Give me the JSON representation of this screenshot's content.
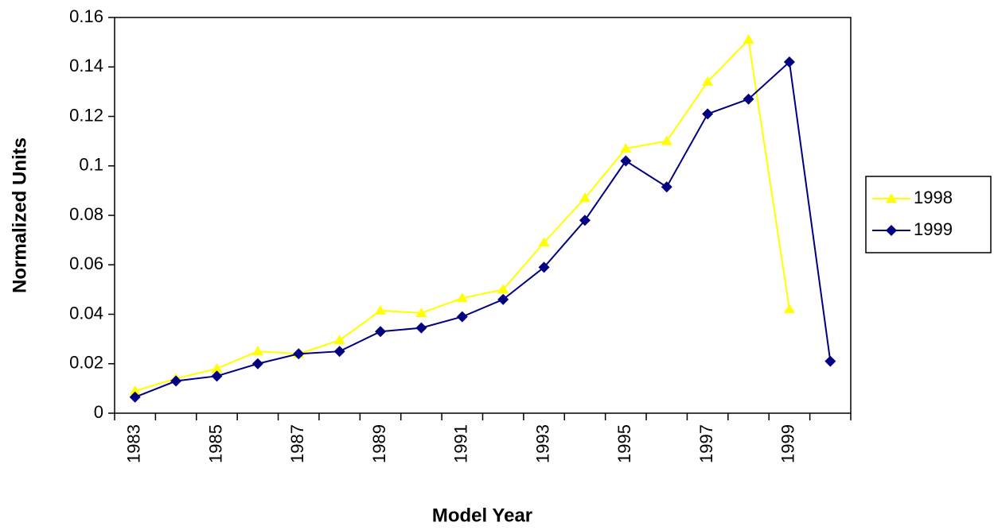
{
  "chart_data": {
    "type": "line",
    "x_label": "Model Year",
    "y_label": "Normalized Units",
    "categories": [
      "1983",
      null,
      "1985",
      null,
      "1987",
      null,
      "1989",
      null,
      "1991",
      null,
      "1993",
      null,
      "1995",
      null,
      "1997",
      null,
      "1999",
      null
    ],
    "series": [
      {
        "name": "1998",
        "color": "#ffff00",
        "marker": "triangle",
        "values": [
          0.009,
          0.014,
          0.018,
          0.025,
          0.024,
          0.0295,
          0.0415,
          0.0405,
          0.0465,
          0.05,
          0.069,
          0.087,
          0.107,
          0.11,
          0.134,
          0.151,
          0.042,
          null
        ]
      },
      {
        "name": "1999",
        "color": "#000080",
        "marker": "diamond",
        "values": [
          0.0065,
          0.013,
          0.015,
          0.02,
          0.024,
          0.025,
          0.033,
          0.0345,
          0.039,
          0.046,
          0.059,
          0.078,
          0.102,
          0.0915,
          0.121,
          0.127,
          0.142,
          0.021
        ]
      }
    ],
    "ylim": [
      0,
      0.16
    ],
    "yticks": [
      0,
      0.02,
      0.04,
      0.06,
      0.08,
      0.1,
      0.12,
      0.14,
      0.16
    ],
    "grid": false,
    "legend": "right"
  }
}
